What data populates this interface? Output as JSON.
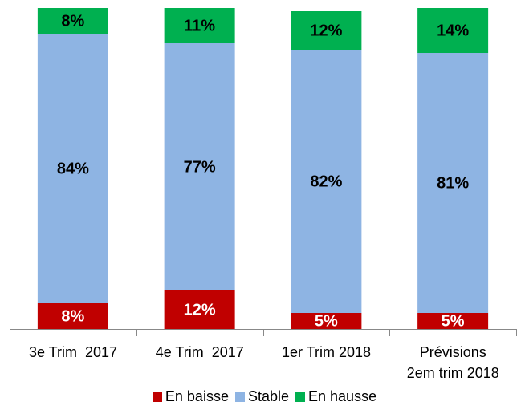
{
  "chart_data": {
    "type": "stacked_bar",
    "categories": [
      "3e Trim  2017",
      "4e Trim  2017",
      "1er Trim 2018",
      "Prévisions\n2em trim 2018"
    ],
    "ylim": [
      0,
      100
    ],
    "series": [
      {
        "name": "En baisse",
        "color": "#c00000",
        "values": [
          8,
          12,
          5,
          5
        ],
        "value_labels": [
          "8%",
          "12%",
          "5%",
          "5%"
        ]
      },
      {
        "name": "Stable",
        "color": "#8eb4e3",
        "values": [
          84,
          77,
          82,
          81
        ],
        "value_labels": [
          "84%",
          "77%",
          "82%",
          "81%"
        ]
      },
      {
        "name": "En hausse",
        "color": "#00b050",
        "values": [
          8,
          11,
          12,
          14
        ],
        "value_labels": [
          "8%",
          "11%",
          "12%",
          "14%"
        ]
      }
    ]
  }
}
